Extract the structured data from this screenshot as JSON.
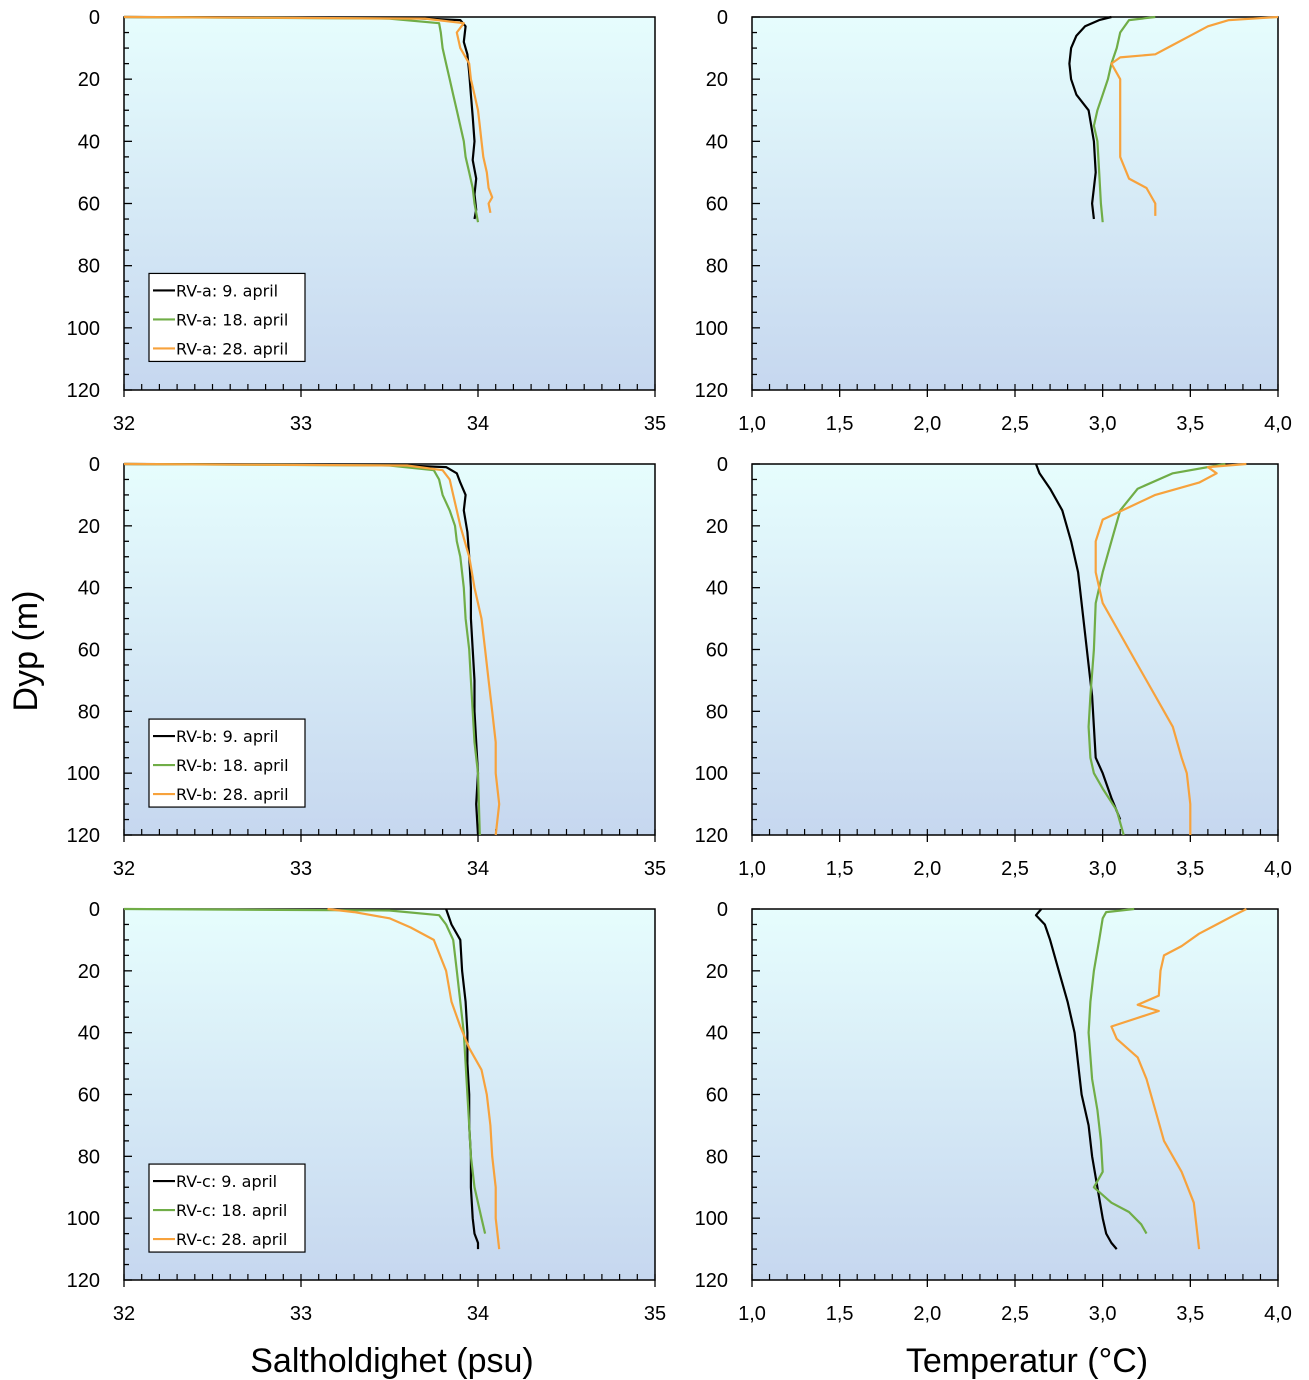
{
  "figure": {
    "ylabel": "Dyp (m)",
    "xlabel_left": "Saltholdighet (psu)",
    "xlabel_right": "Temperatur (°C)"
  },
  "colors": {
    "bg_top": "#e6fdfd",
    "bg_bottom": "#c6d7ef",
    "series": [
      "#000000",
      "#70ad47",
      "#f7a23c"
    ]
  },
  "chart_data": [
    {
      "type": "line",
      "variable": "salinity",
      "station": "RV-a",
      "xlim": [
        32,
        35
      ],
      "ylim": [
        0,
        120
      ],
      "y_inverted": true,
      "xticks": [
        "32",
        "33",
        "34",
        "35"
      ],
      "yticks": [
        "0",
        "20",
        "40",
        "60",
        "80",
        "100",
        "120"
      ],
      "legend": [
        "RV-a:   9. april",
        "RV-a: 18. april",
        "RV-a: 28. april"
      ],
      "series": [
        {
          "name": "RV-a:   9. april",
          "x": [
            32.0,
            33.6,
            33.9,
            33.93,
            33.92,
            33.94,
            33.95,
            33.96,
            33.97,
            33.98,
            33.97,
            33.99,
            33.98,
            33.99,
            33.98
          ],
          "y": [
            0,
            0.3,
            1,
            3,
            8,
            12,
            18,
            25,
            32,
            40,
            46,
            52,
            57,
            62,
            65
          ]
        },
        {
          "name": "RV-a: 18. april",
          "x": [
            32.0,
            33.5,
            33.78,
            33.79,
            33.8,
            33.82,
            33.84,
            33.86,
            33.88,
            33.9,
            33.92,
            33.93,
            33.95,
            33.97,
            33.98,
            34.0
          ],
          "y": [
            0,
            0.5,
            2,
            5,
            10,
            15,
            20,
            25,
            30,
            35,
            40,
            45,
            50,
            55,
            60,
            66
          ]
        },
        {
          "name": "RV-a: 28. april",
          "x": [
            32.0,
            33.7,
            33.92,
            33.88,
            33.9,
            33.95,
            33.96,
            33.98,
            34.0,
            34.01,
            34.02,
            34.03,
            34.05,
            34.06,
            34.08,
            34.06,
            34.07
          ],
          "y": [
            0,
            0.5,
            2,
            5,
            10,
            15,
            20,
            25,
            30,
            35,
            40,
            45,
            50,
            55,
            58,
            60,
            63
          ]
        }
      ]
    },
    {
      "type": "line",
      "variable": "temperature",
      "station": "RV-a",
      "xlim": [
        1.0,
        4.0
      ],
      "ylim": [
        0,
        120
      ],
      "y_inverted": true,
      "xticks": [
        "1,0",
        "1,5",
        "2,0",
        "2,5",
        "3,0",
        "3,5",
        "4,0"
      ],
      "yticks": [
        "0",
        "20",
        "40",
        "60",
        "80",
        "100",
        "120"
      ],
      "series": [
        {
          "name": "RV-a:   9. april",
          "x": [
            3.05,
            2.98,
            2.9,
            2.85,
            2.82,
            2.81,
            2.82,
            2.85,
            2.92,
            2.95,
            2.96,
            2.95,
            2.94,
            2.95
          ],
          "y": [
            0,
            1,
            3,
            6,
            10,
            15,
            20,
            25,
            30,
            40,
            50,
            55,
            60,
            65
          ]
        },
        {
          "name": "RV-a: 18. april",
          "x": [
            3.3,
            3.15,
            3.1,
            3.08,
            3.05,
            3.03,
            3.0,
            2.97,
            2.95,
            2.97,
            2.98,
            2.99,
            3.0
          ],
          "y": [
            0,
            1,
            5,
            10,
            15,
            20,
            25,
            30,
            35,
            40,
            50,
            60,
            66
          ]
        },
        {
          "name": "RV-a: 28. april",
          "x": [
            4.0,
            3.72,
            3.6,
            3.5,
            3.4,
            3.3,
            3.1,
            3.05,
            3.1,
            3.1,
            3.1,
            3.15,
            3.25,
            3.3,
            3.3
          ],
          "y": [
            0,
            1,
            3,
            6,
            9,
            12,
            13,
            15,
            20,
            30,
            45,
            52,
            55,
            60,
            64
          ]
        }
      ]
    },
    {
      "type": "line",
      "variable": "salinity",
      "station": "RV-b",
      "xlim": [
        32,
        35
      ],
      "ylim": [
        0,
        120
      ],
      "y_inverted": true,
      "xticks": [
        "32",
        "33",
        "34",
        "35"
      ],
      "yticks": [
        "0",
        "20",
        "40",
        "60",
        "80",
        "100",
        "120"
      ],
      "legend": [
        "RV-b:   9. april",
        "RV-b: 18. april",
        "RV-b: 28. april"
      ],
      "series": [
        {
          "name": "RV-b:   9. april",
          "x": [
            32.0,
            33.5,
            33.82,
            33.88,
            33.9,
            33.93,
            33.92,
            33.94,
            33.95,
            33.96,
            33.96,
            33.97,
            33.98,
            33.98,
            33.99,
            34.0,
            33.99,
            34.0
          ],
          "y": [
            0,
            0.3,
            1,
            3,
            6,
            10,
            15,
            22,
            30,
            40,
            50,
            60,
            70,
            80,
            90,
            100,
            110,
            120
          ]
        },
        {
          "name": "RV-b: 18. april",
          "x": [
            32.0,
            33.5,
            33.75,
            33.78,
            33.8,
            33.84,
            33.87,
            33.88,
            33.9,
            33.92,
            33.93,
            33.95,
            33.96,
            33.97,
            33.98,
            34.0,
            34.01
          ],
          "y": [
            0,
            0.5,
            2,
            5,
            10,
            15,
            20,
            25,
            30,
            40,
            50,
            60,
            70,
            80,
            90,
            100,
            120
          ]
        },
        {
          "name": "RV-b: 28. april",
          "x": [
            32.0,
            33.6,
            33.8,
            33.84,
            33.86,
            33.88,
            33.9,
            33.95,
            33.98,
            34.02,
            34.04,
            34.06,
            34.08,
            34.1,
            34.1,
            34.12,
            34.1
          ],
          "y": [
            0,
            0.5,
            2,
            5,
            10,
            15,
            20,
            30,
            40,
            50,
            60,
            70,
            80,
            90,
            100,
            110,
            120
          ]
        }
      ]
    },
    {
      "type": "line",
      "variable": "temperature",
      "station": "RV-b",
      "xlim": [
        1.0,
        4.0
      ],
      "ylim": [
        0,
        120
      ],
      "y_inverted": true,
      "xticks": [
        "1,0",
        "1,5",
        "2,0",
        "2,5",
        "3,0",
        "3,5",
        "4,0"
      ],
      "yticks": [
        "0",
        "20",
        "40",
        "60",
        "80",
        "100",
        "120"
      ],
      "series": [
        {
          "name": "RV-b:   9. april",
          "x": [
            2.62,
            2.64,
            2.7,
            2.77,
            2.82,
            2.86,
            2.88,
            2.9,
            2.92,
            2.94,
            2.95,
            2.96,
            3.0,
            3.05,
            3.1
          ],
          "y": [
            0,
            3,
            8,
            15,
            25,
            35,
            45,
            55,
            65,
            75,
            85,
            95,
            100,
            108,
            115
          ]
        },
        {
          "name": "RV-b: 18. april",
          "x": [
            3.7,
            3.4,
            3.2,
            3.1,
            3.05,
            3.0,
            2.96,
            2.95,
            2.93,
            2.92,
            2.93,
            2.95,
            3.0,
            3.08,
            3.12
          ],
          "y": [
            0,
            3,
            8,
            15,
            25,
            35,
            45,
            60,
            75,
            85,
            95,
            100,
            105,
            112,
            120
          ]
        },
        {
          "name": "RV-b: 28. april",
          "x": [
            3.82,
            3.6,
            3.65,
            3.55,
            3.3,
            3.0,
            2.96,
            2.96,
            3.0,
            3.1,
            3.2,
            3.3,
            3.4,
            3.45,
            3.48,
            3.5,
            3.5
          ],
          "y": [
            0,
            1,
            3,
            6,
            10,
            18,
            25,
            35,
            45,
            55,
            65,
            75,
            85,
            95,
            100,
            110,
            120
          ]
        }
      ]
    },
    {
      "type": "line",
      "variable": "salinity",
      "station": "RV-c",
      "xlim": [
        32,
        35
      ],
      "ylim": [
        0,
        120
      ],
      "y_inverted": true,
      "xticks": [
        "32",
        "33",
        "34",
        "35"
      ],
      "yticks": [
        "0",
        "20",
        "40",
        "60",
        "80",
        "100",
        "120"
      ],
      "legend": [
        "RV-c:   9. april",
        "RV-c: 18. april",
        "RV-c: 28. april"
      ],
      "series": [
        {
          "name": "RV-c:   9. april",
          "x": [
            33.82,
            33.85,
            33.9,
            33.91,
            33.93,
            33.94,
            33.94,
            33.95,
            33.95,
            33.96,
            33.96,
            33.97,
            33.98,
            34.0,
            34.0
          ],
          "y": [
            0,
            5,
            10,
            20,
            30,
            40,
            50,
            60,
            70,
            80,
            90,
            100,
            105,
            108,
            110
          ]
        },
        {
          "name": "RV-c: 18. april",
          "x": [
            32.0,
            33.5,
            33.78,
            33.82,
            33.86,
            33.88,
            33.9,
            33.92,
            33.93,
            33.94,
            33.95,
            33.96,
            33.98,
            34.02,
            34.04
          ],
          "y": [
            0,
            0.5,
            2,
            5,
            10,
            20,
            30,
            40,
            50,
            60,
            70,
            80,
            90,
            100,
            105
          ]
        },
        {
          "name": "RV-c: 28. april",
          "x": [
            33.15,
            33.3,
            33.5,
            33.62,
            33.75,
            33.82,
            33.85,
            33.9,
            33.95,
            34.02,
            34.05,
            34.07,
            34.08,
            34.1,
            34.1,
            34.12
          ],
          "y": [
            0,
            1,
            3,
            6,
            10,
            20,
            30,
            38,
            45,
            52,
            60,
            70,
            80,
            90,
            100,
            110
          ]
        }
      ]
    },
    {
      "type": "line",
      "variable": "temperature",
      "station": "RV-c",
      "xlim": [
        1.0,
        4.0
      ],
      "ylim": [
        0,
        120
      ],
      "y_inverted": true,
      "xticks": [
        "1,0",
        "1,5",
        "2,0",
        "2,5",
        "3,0",
        "3,5",
        "4,0"
      ],
      "yticks": [
        "0",
        "20",
        "40",
        "60",
        "80",
        "100",
        "120"
      ],
      "series": [
        {
          "name": "RV-c:   9. april",
          "x": [
            2.65,
            2.62,
            2.67,
            2.7,
            2.75,
            2.8,
            2.84,
            2.86,
            2.88,
            2.92,
            2.94,
            2.97,
            3.0,
            3.02,
            3.05,
            3.08
          ],
          "y": [
            0,
            2,
            5,
            10,
            20,
            30,
            40,
            50,
            60,
            70,
            80,
            90,
            100,
            105,
            108,
            110
          ]
        },
        {
          "name": "RV-c: 18. april",
          "x": [
            3.18,
            3.02,
            3.0,
            2.98,
            2.95,
            2.93,
            2.92,
            2.94,
            2.97,
            2.99,
            3.0,
            2.95,
            3.05,
            3.15,
            3.22,
            3.25
          ],
          "y": [
            0,
            1,
            3,
            10,
            20,
            30,
            40,
            55,
            65,
            75,
            85,
            90,
            95,
            98,
            102,
            105
          ]
        },
        {
          "name": "RV-c: 28. april",
          "x": [
            3.82,
            3.75,
            3.65,
            3.55,
            3.45,
            3.35,
            3.33,
            3.32,
            3.2,
            3.32,
            3.05,
            3.08,
            3.2,
            3.25,
            3.3,
            3.35,
            3.45,
            3.52,
            3.55
          ],
          "y": [
            0,
            2,
            5,
            8,
            12,
            15,
            20,
            28,
            31,
            33,
            38,
            42,
            48,
            55,
            65,
            75,
            85,
            95,
            110
          ]
        }
      ]
    }
  ]
}
